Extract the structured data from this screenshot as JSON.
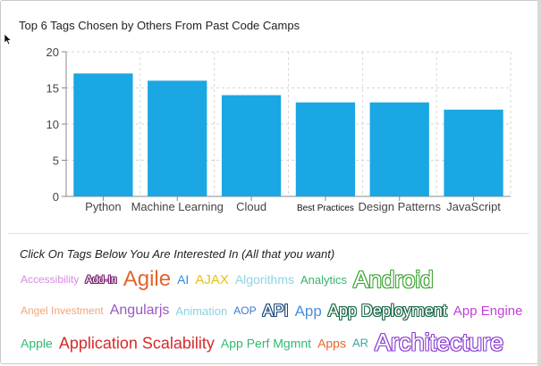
{
  "chart_title": "Top 6 Tags Chosen by Others From Past Code Camps",
  "tags_heading": "Click On Tags Below You Are Interested In (All that you want)",
  "chart_data": {
    "type": "bar",
    "title": "Top 6 Tags Chosen by Others From Past Code Camps",
    "categories": [
      "Python",
      "Machine Learning",
      "Cloud",
      "Best Practices",
      "Design Patterns",
      "JavaScript"
    ],
    "values": [
      17,
      16,
      14,
      13,
      13,
      12
    ],
    "ylim": [
      0,
      20
    ],
    "yticks": [
      0,
      5,
      10,
      15,
      20
    ],
    "grid": true,
    "bar_color": "#1aa7e3"
  },
  "tag_rows": [
    [
      {
        "label": "Accessibility",
        "color": "#d68ae0",
        "size": 12
      },
      {
        "label": "Add-In",
        "color": "#7a1f6f",
        "size": 12,
        "style": "outlined"
      },
      {
        "label": "Agile",
        "color": "#e0662b",
        "size": 24
      },
      {
        "label": "AI",
        "color": "#2f8ee0",
        "size": 14
      },
      {
        "label": "AJAX",
        "color": "#e6c21a",
        "size": 15
      },
      {
        "label": "Algorithms",
        "color": "#8fd3e8",
        "size": 14
      },
      {
        "label": "Analytics",
        "color": "#38b36b",
        "size": 13
      },
      {
        "label": "Android",
        "color": "#3fa535",
        "size": 26,
        "style": "outlined"
      }
    ],
    [
      {
        "label": "Angel Investment",
        "color": "#f2a47a",
        "size": 12
      },
      {
        "label": "Angularjs",
        "color": "#9a58c2",
        "size": 16
      },
      {
        "label": "Animation",
        "color": "#8ad3e3",
        "size": 13
      },
      {
        "label": "AOP",
        "color": "#3a7bd5",
        "size": 12
      },
      {
        "label": "API",
        "color": "#1c4a78",
        "size": 18,
        "style": "outlined"
      },
      {
        "label": "App",
        "color": "#4a8ee0",
        "size": 17
      },
      {
        "label": "App Deployment",
        "color": "#1e6b4a",
        "size": 18,
        "style": "outlined"
      },
      {
        "label": "App Engine",
        "color": "#c23fd8",
        "size": 15
      }
    ],
    [
      {
        "label": "Apple",
        "color": "#2fb870",
        "size": 14
      },
      {
        "label": "Application Scalability",
        "color": "#d42b2b",
        "size": 18
      },
      {
        "label": "App Perf Mgmnt",
        "color": "#2fb870",
        "size": 14
      },
      {
        "label": "Apps",
        "color": "#e0662b",
        "size": 14
      },
      {
        "label": "AR",
        "color": "#3aa6a6",
        "size": 13
      },
      {
        "label": "Architecture",
        "color": "#8a3fd0",
        "size": 27,
        "style": "outlined"
      }
    ]
  ]
}
